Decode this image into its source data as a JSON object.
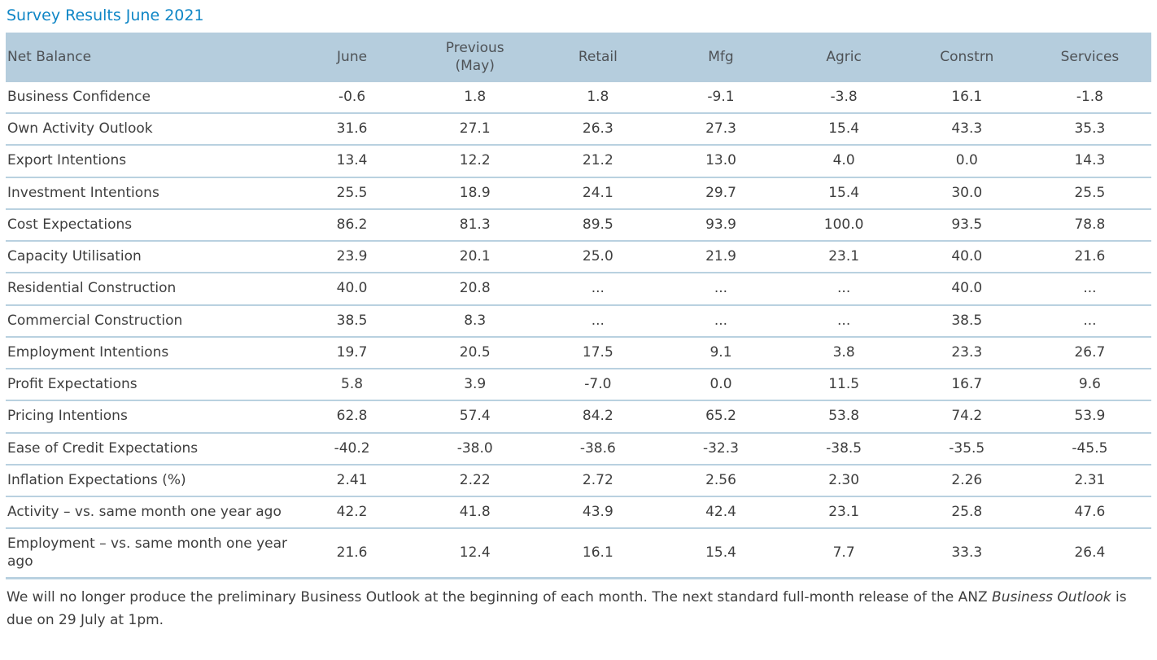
{
  "title": "Survey Results June 2021",
  "colors": {
    "accent": "#0f86c6",
    "header_bg": "#b5cddd",
    "divider": "#b9d1e0",
    "text": "#3e3e3e",
    "header_text": "#4e5256"
  },
  "chart_data": {
    "type": "table",
    "title": "Survey Results June 2021",
    "columns": [
      "Net Balance",
      "June",
      "Previous\n(May)",
      "Retail",
      "Mfg",
      "Agric",
      "Constrn",
      "Services"
    ],
    "rows": [
      {
        "label": "Business Confidence",
        "values": [
          "-0.6",
          "1.8",
          "1.8",
          "-9.1",
          "-3.8",
          "16.1",
          "-1.8"
        ]
      },
      {
        "label": "Own Activity Outlook",
        "values": [
          "31.6",
          "27.1",
          "26.3",
          "27.3",
          "15.4",
          "43.3",
          "35.3"
        ]
      },
      {
        "label": "Export Intentions",
        "values": [
          "13.4",
          "12.2",
          "21.2",
          "13.0",
          "4.0",
          "0.0",
          "14.3"
        ]
      },
      {
        "label": "Investment Intentions",
        "values": [
          "25.5",
          "18.9",
          "24.1",
          "29.7",
          "15.4",
          "30.0",
          "25.5"
        ]
      },
      {
        "label": "Cost Expectations",
        "values": [
          "86.2",
          "81.3",
          "89.5",
          "93.9",
          "100.0",
          "93.5",
          "78.8"
        ]
      },
      {
        "label": "Capacity Utilisation",
        "values": [
          "23.9",
          "20.1",
          "25.0",
          "21.9",
          "23.1",
          "40.0",
          "21.6"
        ]
      },
      {
        "label": "Residential Construction",
        "values": [
          "40.0",
          "20.8",
          "...",
          "...",
          "...",
          "40.0",
          "..."
        ]
      },
      {
        "label": "Commercial Construction",
        "values": [
          "38.5",
          "8.3",
          "...",
          "...",
          "...",
          "38.5",
          "..."
        ]
      },
      {
        "label": "Employment Intentions",
        "values": [
          "19.7",
          "20.5",
          "17.5",
          "9.1",
          "3.8",
          "23.3",
          "26.7"
        ]
      },
      {
        "label": "Profit Expectations",
        "values": [
          "5.8",
          "3.9",
          "-7.0",
          "0.0",
          "11.5",
          "16.7",
          "9.6"
        ]
      },
      {
        "label": "Pricing Intentions",
        "values": [
          "62.8",
          "57.4",
          "84.2",
          "65.2",
          "53.8",
          "74.2",
          "53.9"
        ]
      },
      {
        "label": "Ease of Credit Expectations",
        "values": [
          "-40.2",
          "-38.0",
          "-38.6",
          "-32.3",
          "-38.5",
          "-35.5",
          "-45.5"
        ]
      },
      {
        "label": "Inflation Expectations (%)",
        "values": [
          "2.41",
          "2.22",
          "2.72",
          "2.56",
          "2.30",
          "2.26",
          "2.31"
        ]
      },
      {
        "label": "Activity – vs. same month one year ago",
        "values": [
          "42.2",
          "41.8",
          "43.9",
          "42.4",
          "23.1",
          "25.8",
          "47.6"
        ]
      },
      {
        "label": "Employment – vs. same month one year ago",
        "values": [
          "21.6",
          "12.4",
          "16.1",
          "15.4",
          "7.7",
          "33.3",
          "26.4"
        ]
      }
    ]
  },
  "footer": {
    "text_before": "We will no longer produce the preliminary Business Outlook at the beginning of each month. The next standard full-month release of the ANZ ",
    "italic_text": "Business Outlook",
    "text_after": " is due on 29 July at 1pm."
  }
}
